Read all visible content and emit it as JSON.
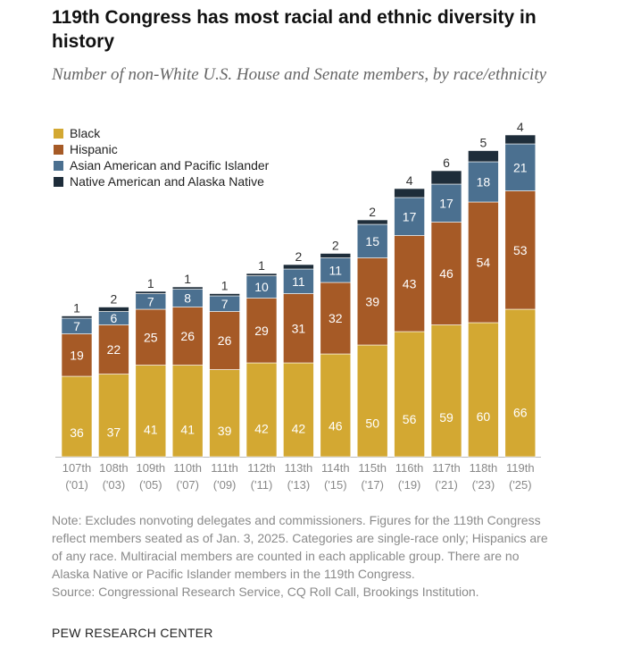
{
  "chart_data": {
    "type": "bar",
    "stacked": true,
    "title": "119th Congress has most racial and ethnic diversity in history",
    "subtitle": "Number of non-White U.S. House and Senate members, by race/ethnicity",
    "categories": [
      "107th",
      "108th",
      "109th",
      "110th",
      "111th",
      "112th",
      "113th",
      "114th",
      "115th",
      "116th",
      "117th",
      "118th",
      "119th"
    ],
    "category_years": [
      "('01)",
      "('03)",
      "('05)",
      "('07)",
      "('09)",
      "('11)",
      "('13)",
      "('15)",
      "('17)",
      "('19)",
      "('21)",
      "('23)",
      "('25)"
    ],
    "series": [
      {
        "name": "Black",
        "color": "#D3A832",
        "values": [
          36,
          37,
          41,
          41,
          39,
          42,
          42,
          46,
          50,
          56,
          59,
          60,
          66
        ]
      },
      {
        "name": "Hispanic",
        "color": "#A65A26",
        "values": [
          19,
          22,
          25,
          26,
          26,
          29,
          31,
          32,
          39,
          43,
          46,
          54,
          53
        ]
      },
      {
        "name": "Asian American and Pacific Islander",
        "color": "#4B7090",
        "values": [
          7,
          6,
          7,
          8,
          7,
          10,
          11,
          11,
          15,
          17,
          17,
          18,
          21
        ]
      },
      {
        "name": "Native American and Alaska Native",
        "color": "#1E2D3A",
        "values": [
          1,
          2,
          1,
          1,
          1,
          1,
          2,
          2,
          2,
          4,
          6,
          5,
          4
        ]
      }
    ],
    "legend_position": "top-left",
    "grid": false
  },
  "note": "Note: Excludes nonvoting delegates and commissioners. Figures for the 119th Congress reflect members seated as of Jan. 3, 2025. Categories are single-race only; Hispanics are of any race. Multiracial members are counted in each applicable group. There are no Alaska Native or Pacific Islander members in the 119th Congress.",
  "source": "Source: Congressional Research Service, CQ Roll Call, Brookings Institution.",
  "brand": "PEW RESEARCH CENTER"
}
